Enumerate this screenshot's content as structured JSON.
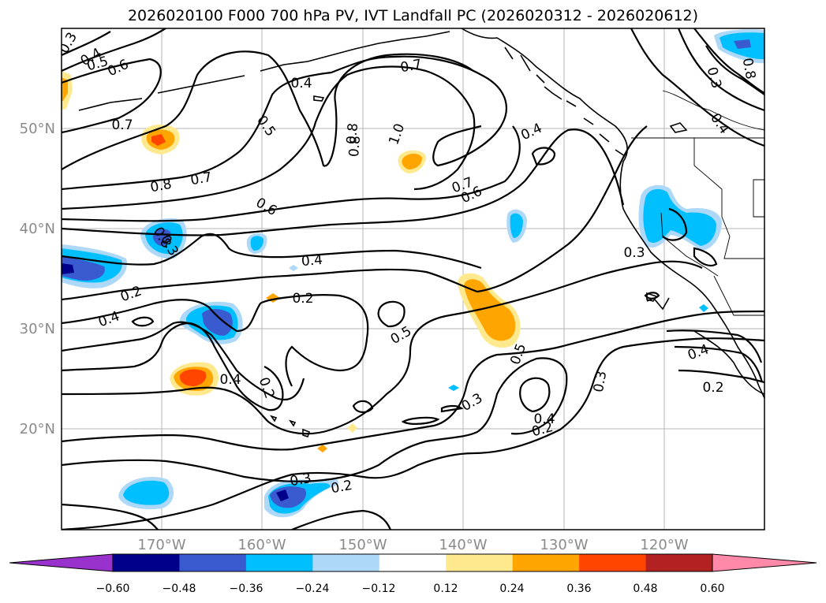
{
  "title": "2026020100 F000 700 hPa PV, IVT Landfall PC (2026020312 - 2026020612)",
  "map": {
    "lat_labels": [
      "50°N",
      "40°N",
      "30°N",
      "20°N"
    ],
    "lon_labels": [
      "170°W",
      "160°W",
      "150°W",
      "140°W",
      "130°W",
      "120°W"
    ],
    "contour_labels": [
      "0.3",
      "0.4",
      "0.5",
      "0.6",
      "0.7",
      "0.4",
      "0.7",
      "0.8",
      "1.0",
      "0.8",
      "0.5",
      "0.4",
      "0.7",
      "0.6",
      "0.8",
      "0.7",
      "0.6",
      "0.8",
      "0.3",
      "0.8",
      "0.3",
      "0.4",
      "0.4",
      "0.2",
      "0.2",
      "0.3",
      "0.4",
      "0.5",
      "0.4",
      "0.2",
      "0.3",
      "0.5",
      "0.4",
      "0.2",
      "0.3",
      "0.2",
      "0.4",
      "0.3",
      "0.2"
    ],
    "shading": {
      "neg_colors": [
        "#9932cc",
        "#00008b",
        "#3a5bd0",
        "#00bfff",
        "#add8f7"
      ],
      "pos_colors": [
        "#ffe98f",
        "#ffa500",
        "#ff4500",
        "#b22222",
        "#ff89a8"
      ]
    }
  },
  "colorbar": {
    "ticks": [
      "−0.60",
      "−0.48",
      "−0.36",
      "−0.24",
      "−0.12",
      "0.12",
      "0.24",
      "0.36",
      "0.48",
      "0.60"
    ],
    "colors": [
      "#9932cc",
      "#00008b",
      "#3a5bd0",
      "#00bfff",
      "#add8f7",
      "#ffffff",
      "#ffe98f",
      "#ffa500",
      "#ff4500",
      "#b22222",
      "#ff89a8"
    ]
  }
}
